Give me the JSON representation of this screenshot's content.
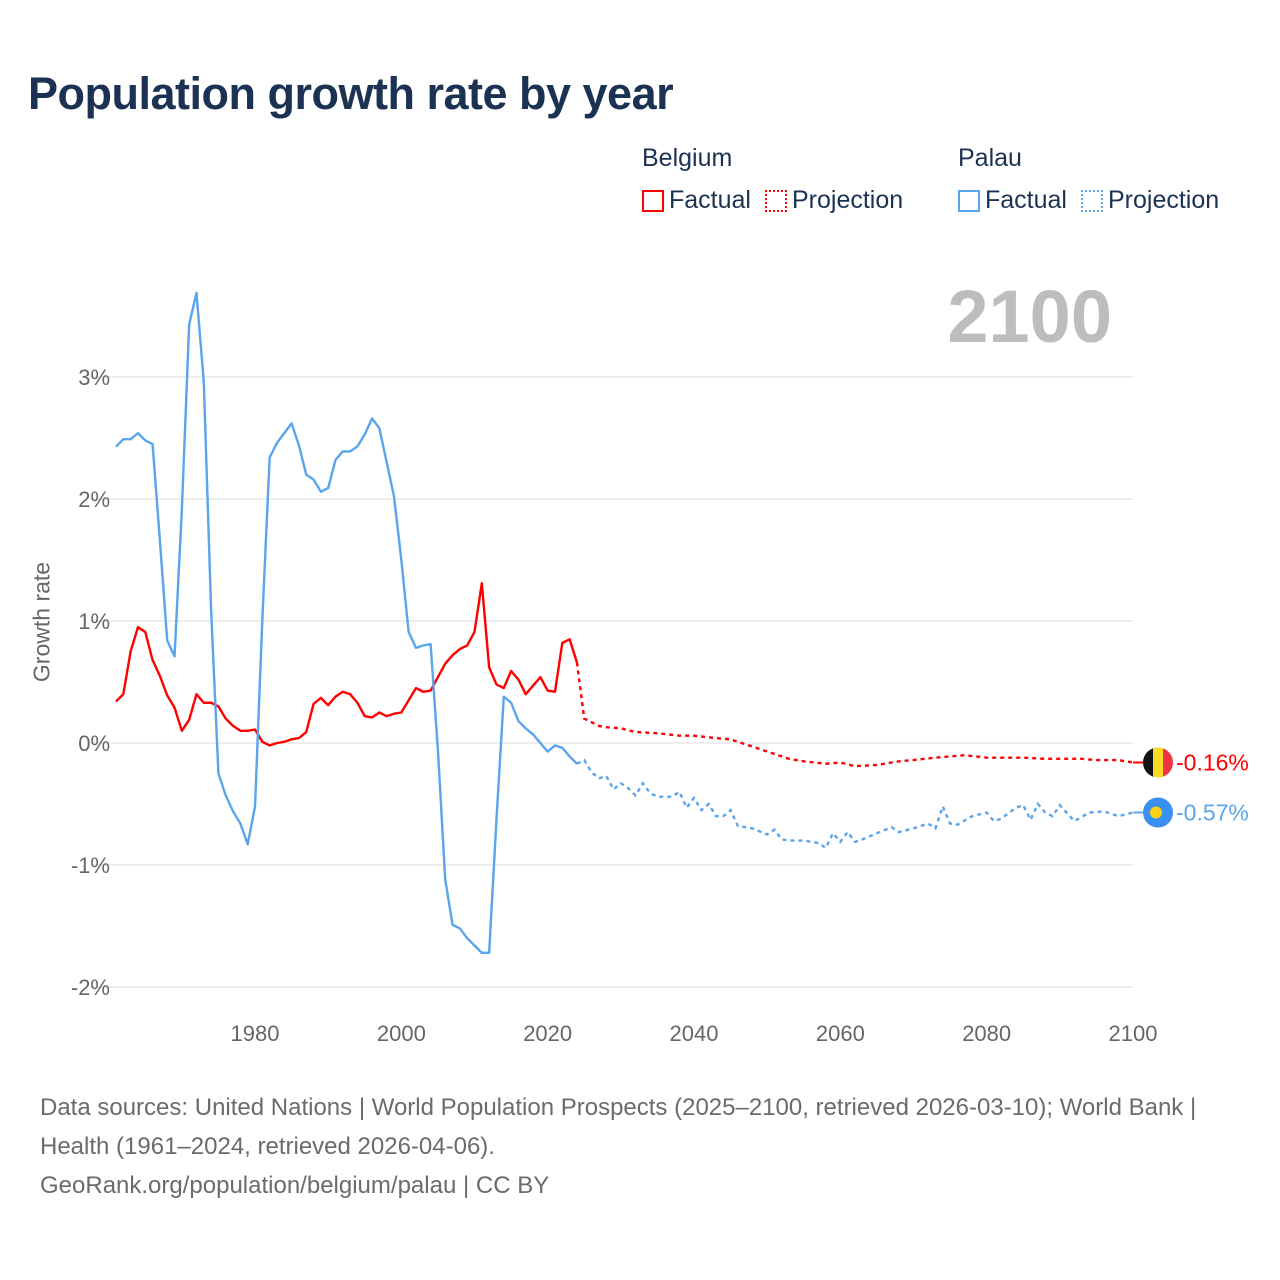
{
  "title": "Population growth rate by year",
  "current_year": "2100",
  "legend": {
    "groups": [
      {
        "name": "Belgium",
        "factual": "Factual",
        "projection": "Projection",
        "color": "#ff0000"
      },
      {
        "name": "Palau",
        "factual": "Factual",
        "projection": "Projection",
        "color": "#5aa5eb"
      }
    ]
  },
  "footer": {
    "sources": "Data sources: United Nations | World Population Prospects (2025–2100, retrieved 2026-03-10); World Bank | Health (1961–2024, retrieved 2026-04-06).",
    "credit": "GeoRank.org/population/belgium/palau | CC BY"
  },
  "chart_data": {
    "type": "line",
    "title": "Population growth rate by year",
    "xlabel": "",
    "ylabel": "Growth rate",
    "xlim": [
      1961,
      2100
    ],
    "ylim": [
      -2.3,
      3.8
    ],
    "x_ticks": [
      1980,
      2000,
      2020,
      2040,
      2060,
      2080,
      2100
    ],
    "y_ticks": [
      {
        "v": 3,
        "label": "3%"
      },
      {
        "v": 2,
        "label": "2%"
      },
      {
        "v": 1,
        "label": "1%"
      },
      {
        "v": 0,
        "label": "0%"
      },
      {
        "v": -1,
        "label": "-1%"
      },
      {
        "v": -2,
        "label": "-2%"
      }
    ],
    "grid": true,
    "legend_position": "top-right",
    "series": [
      {
        "name": "Belgium",
        "color": "#ff0000",
        "end_label": "-0.16%",
        "factual": {
          "start_year": 1961,
          "values": [
            0.34,
            0.4,
            0.75,
            0.95,
            0.91,
            0.68,
            0.55,
            0.39,
            0.29,
            0.1,
            0.19,
            0.4,
            0.33,
            0.33,
            0.3,
            0.2,
            0.14,
            0.1,
            0.1,
            0.11,
            0.01,
            -0.02,
            0.0,
            0.01,
            0.03,
            0.04,
            0.09,
            0.32,
            0.37,
            0.31,
            0.38,
            0.42,
            0.4,
            0.33,
            0.22,
            0.21,
            0.25,
            0.22,
            0.24,
            0.25,
            0.35,
            0.45,
            0.42,
            0.43,
            0.54,
            0.65,
            0.72,
            0.77,
            0.8,
            0.91,
            1.31,
            0.62,
            0.48,
            0.45,
            0.59,
            0.52,
            0.4,
            0.47,
            0.54,
            0.43,
            0.42,
            0.82,
            0.85,
            0.66
          ]
        },
        "projection": {
          "years": [
            2024,
            2025,
            2026,
            2027,
            2028,
            2030,
            2032,
            2035,
            2038,
            2040,
            2043,
            2045,
            2048,
            2050,
            2053,
            2055,
            2058,
            2060,
            2062,
            2065,
            2068,
            2070,
            2073,
            2075,
            2077,
            2080,
            2083,
            2085,
            2088,
            2090,
            2093,
            2095,
            2098,
            2100
          ],
          "values": [
            0.66,
            0.2,
            0.17,
            0.14,
            0.13,
            0.12,
            0.09,
            0.08,
            0.06,
            0.06,
            0.04,
            0.03,
            -0.03,
            -0.07,
            -0.13,
            -0.15,
            -0.17,
            -0.16,
            -0.19,
            -0.18,
            -0.15,
            -0.14,
            -0.12,
            -0.11,
            -0.1,
            -0.12,
            -0.12,
            -0.12,
            -0.13,
            -0.13,
            -0.13,
            -0.14,
            -0.14,
            -0.16
          ]
        }
      },
      {
        "name": "Palau",
        "color": "#5aa5eb",
        "end_label": "-0.57%",
        "factual": {
          "start_year": 1961,
          "values": [
            2.43,
            2.49,
            2.49,
            2.54,
            2.48,
            2.45,
            1.66,
            0.84,
            0.71,
            1.91,
            3.43,
            3.69,
            2.96,
            1.09,
            -0.25,
            -0.43,
            -0.56,
            -0.66,
            -0.83,
            -0.52,
            1.01,
            2.34,
            2.46,
            2.54,
            2.62,
            2.44,
            2.2,
            2.16,
            2.06,
            2.09,
            2.32,
            2.39,
            2.39,
            2.43,
            2.53,
            2.66,
            2.58,
            2.3,
            2.02,
            1.5,
            0.91,
            0.78,
            0.8,
            0.81,
            -0.06,
            -1.12,
            -1.49,
            -1.52,
            -1.6,
            -1.66,
            -1.72,
            -1.72,
            -0.63,
            0.38,
            0.33,
            0.18,
            0.12,
            0.07,
            0.0,
            -0.07,
            -0.02,
            -0.04,
            -0.11,
            -0.17
          ]
        },
        "projection": {
          "years": [
            2024,
            2025,
            2026,
            2027,
            2028,
            2029,
            2030,
            2031,
            2032,
            2033,
            2034,
            2035,
            2037,
            2038,
            2039,
            2040,
            2041,
            2042,
            2043,
            2044,
            2045,
            2046,
            2048,
            2050,
            2051,
            2052,
            2053,
            2055,
            2057,
            2058,
            2059,
            2060,
            2061,
            2062,
            2063,
            2065,
            2067,
            2068,
            2070,
            2072,
            2073,
            2074,
            2075,
            2076,
            2078,
            2080,
            2081,
            2082,
            2084,
            2085,
            2086,
            2087,
            2088,
            2089,
            2090,
            2092,
            2094,
            2096,
            2098,
            2100
          ],
          "values": [
            -0.17,
            -0.14,
            -0.24,
            -0.29,
            -0.27,
            -0.38,
            -0.33,
            -0.37,
            -0.43,
            -0.33,
            -0.41,
            -0.44,
            -0.44,
            -0.4,
            -0.53,
            -0.45,
            -0.55,
            -0.5,
            -0.6,
            -0.6,
            -0.55,
            -0.68,
            -0.7,
            -0.75,
            -0.71,
            -0.79,
            -0.8,
            -0.8,
            -0.82,
            -0.86,
            -0.74,
            -0.81,
            -0.73,
            -0.81,
            -0.79,
            -0.74,
            -0.69,
            -0.73,
            -0.7,
            -0.66,
            -0.7,
            -0.52,
            -0.66,
            -0.67,
            -0.6,
            -0.57,
            -0.64,
            -0.62,
            -0.53,
            -0.51,
            -0.63,
            -0.5,
            -0.57,
            -0.6,
            -0.51,
            -0.64,
            -0.57,
            -0.56,
            -0.6,
            -0.57
          ]
        }
      }
    ]
  }
}
